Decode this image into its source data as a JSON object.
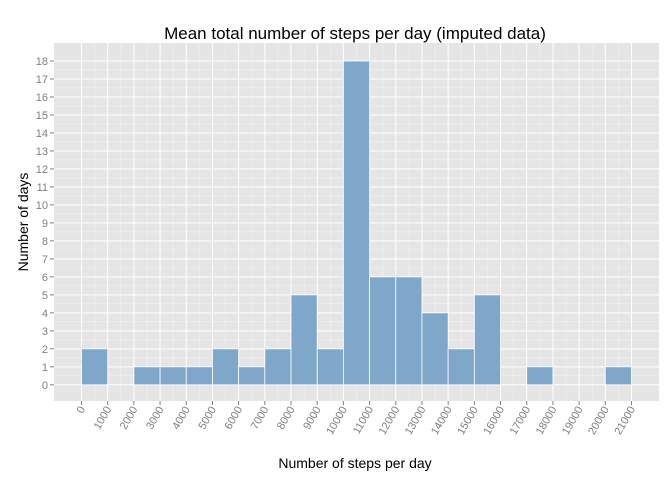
{
  "chart_data": {
    "type": "bar",
    "title": "Mean total number of steps per day (imputed data)",
    "xlabel": "Number of steps per day",
    "ylabel": "Number of days",
    "bin_width": 1000,
    "bins": [
      {
        "start": 0,
        "count": 2
      },
      {
        "start": 1000,
        "count": 0
      },
      {
        "start": 2000,
        "count": 1
      },
      {
        "start": 3000,
        "count": 1
      },
      {
        "start": 4000,
        "count": 1
      },
      {
        "start": 5000,
        "count": 2
      },
      {
        "start": 6000,
        "count": 1
      },
      {
        "start": 7000,
        "count": 2
      },
      {
        "start": 8000,
        "count": 5
      },
      {
        "start": 9000,
        "count": 2
      },
      {
        "start": 10000,
        "count": 18
      },
      {
        "start": 11000,
        "count": 6
      },
      {
        "start": 12000,
        "count": 6
      },
      {
        "start": 13000,
        "count": 4
      },
      {
        "start": 14000,
        "count": 2
      },
      {
        "start": 15000,
        "count": 5
      },
      {
        "start": 16000,
        "count": 0
      },
      {
        "start": 17000,
        "count": 1
      },
      {
        "start": 18000,
        "count": 0
      },
      {
        "start": 19000,
        "count": 0
      },
      {
        "start": 20000,
        "count": 1
      }
    ],
    "x_ticks": [
      "0",
      "1000",
      "2000",
      "3000",
      "4000",
      "5000",
      "6000",
      "7000",
      "8000",
      "9000",
      "10000",
      "11000",
      "12000",
      "13000",
      "14000",
      "15000",
      "16000",
      "17000",
      "18000",
      "19000",
      "20000",
      "21000"
    ],
    "y_ticks": [
      "0",
      "1",
      "2",
      "3",
      "4",
      "5",
      "6",
      "7",
      "8",
      "9",
      "10",
      "11",
      "12",
      "13",
      "14",
      "15",
      "16",
      "17",
      "18"
    ],
    "xlim": [
      -1050,
      22050
    ],
    "ylim": [
      -0.9,
      19.0
    ],
    "grid": true,
    "colors": {
      "bar_fill": "#7fa7c9",
      "bar_stroke": "#ffffff",
      "panel_bg": "#e5e5e5",
      "grid_major": "#ffffff",
      "grid_minor": "#f2f2f2"
    }
  }
}
